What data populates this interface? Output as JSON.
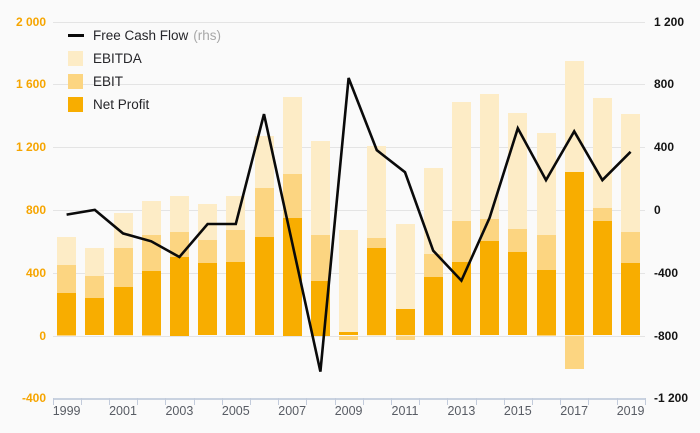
{
  "legend": {
    "items": [
      {
        "id": "fcf",
        "label": "Free Cash Flow",
        "suffix": "(rhs)",
        "swatch": "line",
        "color": "#0a0a0a"
      },
      {
        "id": "ebitda",
        "label": "EBITDA",
        "swatch": "square",
        "color": "#fdecc6"
      },
      {
        "id": "ebit",
        "label": "EBIT",
        "swatch": "square",
        "color": "#fcd581"
      },
      {
        "id": "net_profit",
        "label": "Net Profit",
        "swatch": "square",
        "color": "#f8ad00"
      }
    ]
  },
  "chart_data": {
    "type": "bar",
    "subtype": "combo-bar-line-dual-axis",
    "x": [
      1999,
      2000,
      2001,
      2002,
      2003,
      2004,
      2005,
      2006,
      2007,
      2008,
      2009,
      2010,
      2011,
      2012,
      2013,
      2014,
      2015,
      2016,
      2017,
      2018,
      2019
    ],
    "x_tick_labels": [
      "1999",
      "2001",
      "2003",
      "2005",
      "2007",
      "2009",
      "2011",
      "2013",
      "2015",
      "2017",
      "2019"
    ],
    "series": [
      {
        "name": "EBITDA",
        "type": "bar",
        "axis": "left",
        "color": "#fdecc6",
        "values": [
          630,
          560,
          780,
          860,
          890,
          840,
          890,
          1270,
          1520,
          1240,
          670,
          1210,
          710,
          1070,
          1490,
          1540,
          1420,
          1290,
          1750,
          1510,
          1410
        ]
      },
      {
        "name": "EBIT",
        "type": "bar",
        "axis": "left",
        "color": "#fcd581",
        "values": [
          450,
          380,
          560,
          640,
          660,
          610,
          670,
          940,
          1030,
          640,
          -30,
          620,
          -30,
          520,
          730,
          740,
          680,
          640,
          -210,
          810,
          660
        ]
      },
      {
        "name": "Net Profit",
        "type": "bar",
        "axis": "left",
        "color": "#f8ad00",
        "values": [
          270,
          240,
          310,
          410,
          500,
          460,
          470,
          630,
          750,
          350,
          25,
          560,
          170,
          370,
          470,
          600,
          530,
          420,
          1040,
          730,
          460
        ]
      },
      {
        "name": "Free Cash Flow (rhs)",
        "type": "line",
        "axis": "right",
        "color": "#0a0a0a",
        "values": [
          -30,
          0,
          -150,
          -200,
          -300,
          -90,
          -90,
          610,
          -210,
          -1030,
          840,
          380,
          240,
          -260,
          -450,
          -50,
          520,
          190,
          500,
          190,
          370
        ]
      }
    ],
    "left_axis": {
      "tick_labels": [
        "2 000",
        "1 600",
        "1 200",
        "800",
        "400",
        "0",
        "-400"
      ],
      "tick_values": [
        2000,
        1600,
        1200,
        800,
        400,
        0,
        -400
      ],
      "range": [
        -400,
        2000
      ],
      "color": "#f6a500"
    },
    "right_axis": {
      "tick_labels": [
        "1 200",
        "800",
        "400",
        "0",
        "-400",
        "-800",
        "-1 200"
      ],
      "tick_values": [
        1200,
        800,
        400,
        0,
        -400,
        -800,
        -1200
      ],
      "range": [
        -1200,
        1200
      ],
      "color": "#141414"
    },
    "grid": "horizontal",
    "legend_position": "top-left-inside",
    "title": ""
  }
}
